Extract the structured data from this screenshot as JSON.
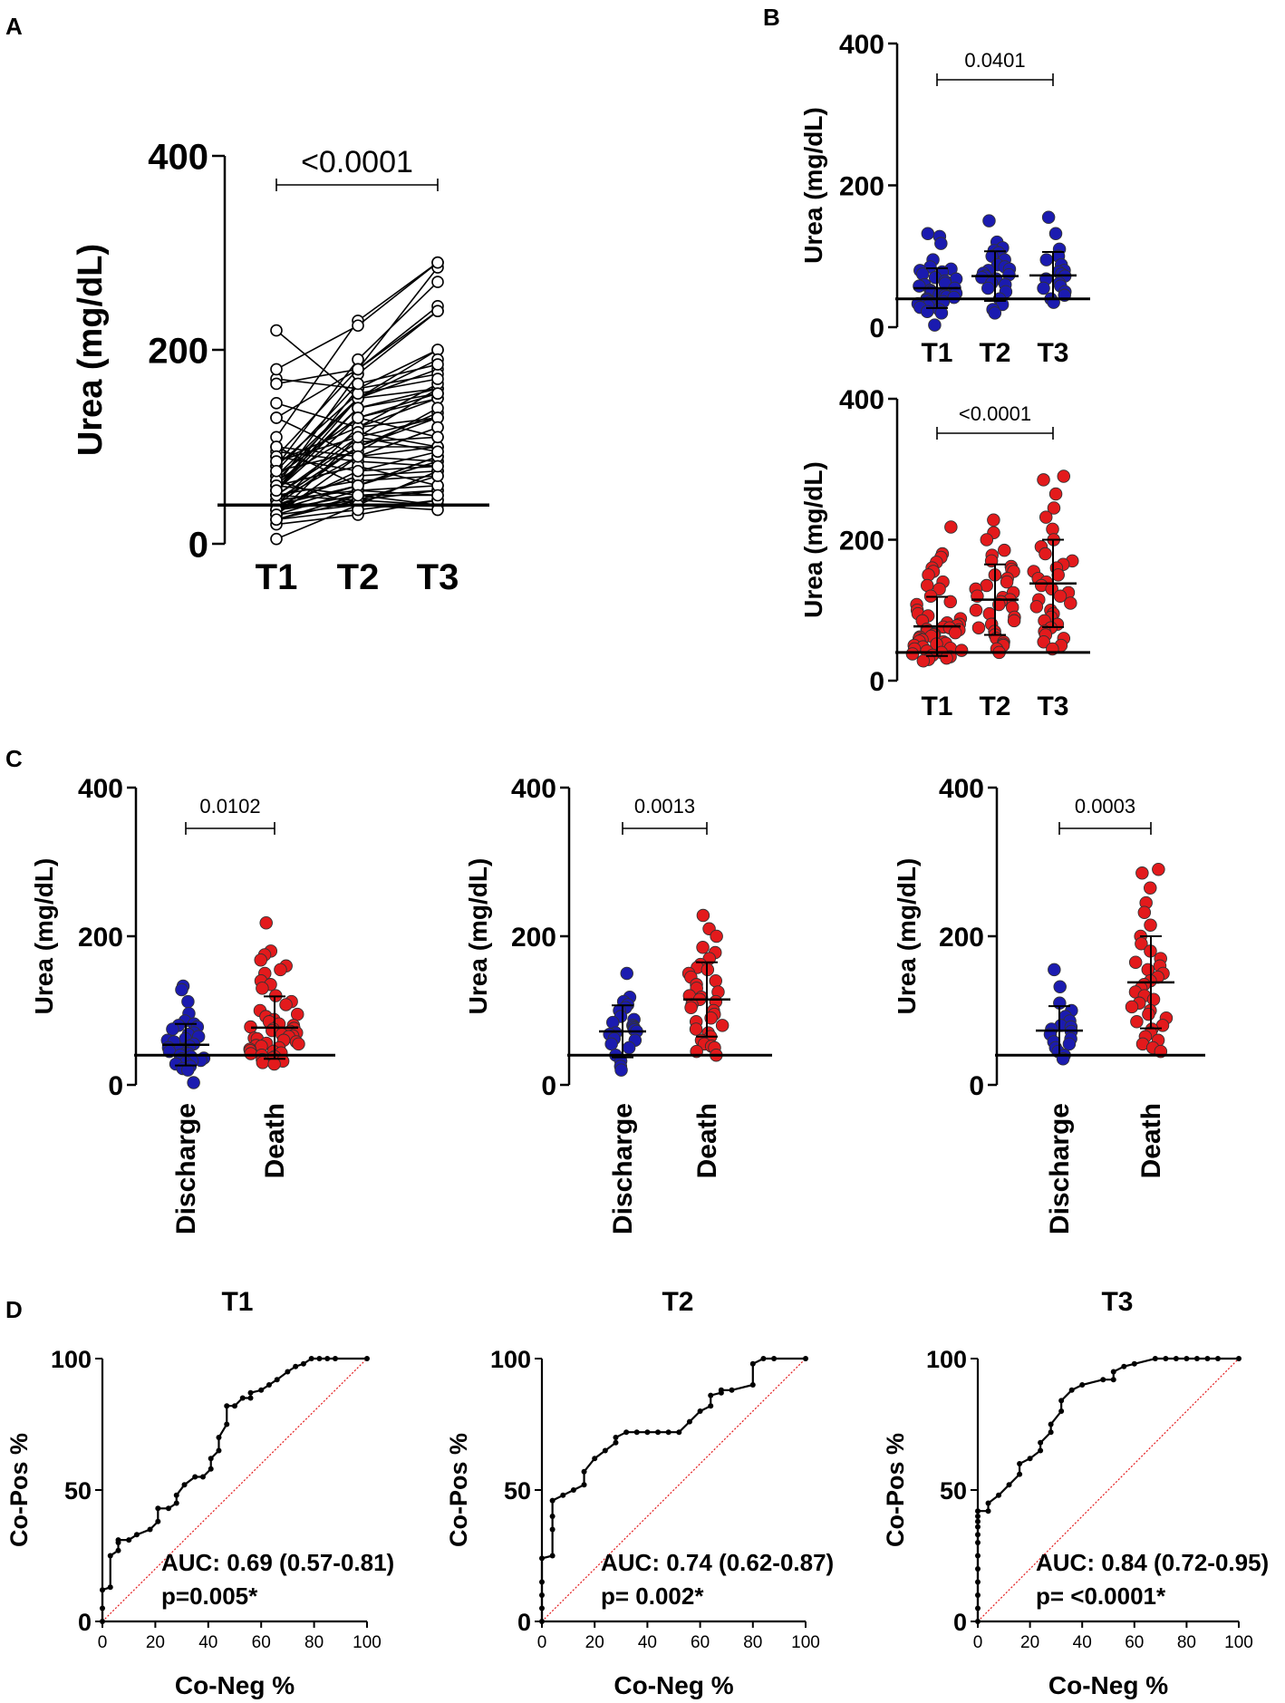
{
  "panel_labels": {
    "a": "A",
    "b": "B",
    "c": "C",
    "d": "D"
  },
  "colors": {
    "discharge": "#1b1bb0",
    "death": "#e31a1c",
    "reference": "#e31a1c",
    "ink": "#000000"
  },
  "chart_data": [
    {
      "id": "A",
      "type": "line",
      "title": "",
      "ylabel": "Urea (mg/dL)",
      "xlabel": "",
      "ylim": [
        0,
        400
      ],
      "yticks": [
        0,
        200,
        400
      ],
      "categories": [
        "T1",
        "T2",
        "T3"
      ],
      "reference_line": 40,
      "pvalue": "<0.0001",
      "pvalue_span": [
        0,
        2
      ],
      "paired_series": [
        [
          5,
          40,
          75
        ],
        [
          30,
          90,
          120
        ],
        [
          35,
          60,
          85
        ],
        [
          40,
          120,
          150
        ],
        [
          55,
          160,
          200
        ],
        [
          110,
          230,
          290
        ],
        [
          70,
          150,
          200
        ],
        [
          60,
          175,
          240
        ],
        [
          45,
          100,
          135
        ],
        [
          25,
          45,
          55
        ],
        [
          80,
          190,
          270
        ],
        [
          65,
          150,
          180
        ],
        [
          90,
          180,
          245
        ],
        [
          50,
          110,
          160
        ],
        [
          35,
          75,
          95
        ],
        [
          45,
          55,
          50
        ],
        [
          50,
          65,
          70
        ],
        [
          20,
          30,
          45
        ],
        [
          55,
          150,
          190
        ],
        [
          30,
          110,
          130
        ],
        [
          60,
          140,
          160
        ],
        [
          70,
          130,
          150
        ],
        [
          40,
          70,
          75
        ],
        [
          45,
          90,
          85
        ],
        [
          50,
          105,
          110
        ],
        [
          30,
          55,
          60
        ],
        [
          40,
          100,
          100
        ],
        [
          35,
          45,
          40
        ],
        [
          25,
          50,
          55
        ],
        [
          130,
          180,
          285
        ],
        [
          170,
          160,
          175
        ],
        [
          165,
          180,
          240
        ],
        [
          180,
          225,
          290
        ],
        [
          220,
          150,
          160
        ],
        [
          145,
          120,
          130
        ],
        [
          130,
          90,
          100
        ],
        [
          100,
          60,
          90
        ],
        [
          95,
          85,
          80
        ],
        [
          65,
          40,
          75
        ],
        [
          75,
          95,
          140
        ],
        [
          85,
          120,
          165
        ],
        [
          60,
          80,
          60
        ],
        [
          55,
          140,
          155
        ],
        [
          45,
          100,
          130
        ],
        [
          40,
          60,
          90
        ],
        [
          35,
          50,
          40
        ],
        [
          70,
          130,
          155
        ],
        [
          65,
          115,
          100
        ],
        [
          80,
          155,
          170
        ],
        [
          50,
          45,
          70
        ],
        [
          30,
          40,
          35
        ],
        [
          25,
          35,
          45
        ],
        [
          100,
          90,
          120
        ],
        [
          90,
          75,
          80
        ],
        [
          85,
          110,
          95
        ],
        [
          60,
          50,
          50
        ],
        [
          55,
          130,
          110
        ],
        [
          75,
          165,
          185
        ]
      ]
    },
    {
      "id": "B-top",
      "type": "scatter",
      "ylabel": "Urea (mg/dL)",
      "ylim": [
        0,
        400
      ],
      "yticks": [
        0,
        200,
        400
      ],
      "categories": [
        "T1",
        "T2",
        "T3"
      ],
      "reference_line": 40,
      "pvalue": "0.0401",
      "pvalue_span": [
        0,
        2
      ],
      "color": "discharge",
      "series": [
        {
          "name": "T1",
          "mean": 55,
          "sd": 28,
          "values": [
            128,
            132,
            118,
            95,
            85,
            82,
            80,
            78,
            75,
            70,
            68,
            65,
            62,
            60,
            58,
            55,
            52,
            50,
            48,
            46,
            45,
            43,
            42,
            40,
            38,
            36,
            35,
            33,
            32,
            30,
            28,
            25,
            22,
            20,
            3
          ]
        },
        {
          "name": "T2",
          "mean": 72,
          "sd": 35,
          "values": [
            150,
            120,
            112,
            108,
            105,
            100,
            95,
            88,
            85,
            82,
            80,
            76,
            74,
            72,
            70,
            68,
            62,
            60,
            55,
            50,
            40,
            32,
            25,
            20
          ]
        },
        {
          "name": "T3",
          "mean": 73,
          "sd": 33,
          "values": [
            155,
            132,
            110,
            100,
            95,
            88,
            80,
            78,
            75,
            72,
            68,
            62,
            58,
            55,
            50,
            45,
            40,
            35
          ]
        }
      ]
    },
    {
      "id": "B-bottom",
      "type": "scatter",
      "ylabel": "Urea (mg/dL)",
      "ylim": [
        0,
        400
      ],
      "yticks": [
        0,
        200,
        400
      ],
      "categories": [
        "T1",
        "T2",
        "T3"
      ],
      "reference_line": 40,
      "pvalue": "<0.0001",
      "pvalue_span": [
        0,
        2
      ],
      "color": "death",
      "series": [
        {
          "name": "T1",
          "mean": 77,
          "sd": 42,
          "values": [
            218,
            180,
            175,
            168,
            160,
            155,
            150,
            140,
            135,
            130,
            120,
            112,
            108,
            100,
            95,
            92,
            88,
            85,
            82,
            80,
            78,
            76,
            75,
            73,
            72,
            70,
            68,
            66,
            65,
            63,
            62,
            60,
            58,
            56,
            55,
            53,
            52,
            50,
            48,
            46,
            45,
            43,
            42,
            40,
            38,
            36,
            34,
            32,
            30,
            28
          ]
        },
        {
          "name": "T2",
          "mean": 115,
          "sd": 50,
          "values": [
            228,
            210,
            200,
            185,
            178,
            170,
            162,
            158,
            155,
            150,
            145,
            140,
            135,
            130,
            125,
            120,
            118,
            115,
            112,
            108,
            104,
            100,
            95,
            90,
            85,
            80,
            75,
            70,
            65,
            60,
            55,
            52,
            50,
            45,
            40
          ]
        },
        {
          "name": "T3",
          "mean": 138,
          "sd": 62,
          "values": [
            290,
            285,
            265,
            245,
            232,
            215,
            200,
            190,
            180,
            170,
            165,
            160,
            155,
            150,
            145,
            140,
            135,
            130,
            125,
            120,
            115,
            110,
            105,
            100,
            95,
            90,
            85,
            80,
            75,
            70,
            65,
            60,
            55,
            50,
            45
          ]
        }
      ]
    },
    {
      "id": "C-T1",
      "type": "scatter",
      "ylabel": "Urea (mg/dL)",
      "ylim": [
        0,
        400
      ],
      "yticks": [
        0,
        200,
        400
      ],
      "categories": [
        "Discharge",
        "Death"
      ],
      "reference_line": 40,
      "pvalue": "0.0102",
      "pvalue_span": [
        0,
        1
      ],
      "series": [
        {
          "name": "Discharge",
          "color": "discharge",
          "mean": 54,
          "sd": 28,
          "values": [
            133,
            128,
            112,
            96,
            86,
            82,
            80,
            78,
            75,
            70,
            68,
            65,
            62,
            60,
            58,
            55,
            52,
            50,
            48,
            46,
            45,
            43,
            42,
            40,
            38,
            36,
            35,
            33,
            32,
            30,
            28,
            25,
            22,
            20,
            3
          ]
        },
        {
          "name": "Death",
          "color": "death",
          "mean": 77,
          "sd": 42,
          "values": [
            218,
            180,
            175,
            168,
            160,
            155,
            150,
            140,
            135,
            130,
            120,
            112,
            108,
            100,
            95,
            92,
            88,
            85,
            82,
            80,
            78,
            76,
            75,
            73,
            72,
            70,
            68,
            66,
            65,
            63,
            62,
            60,
            58,
            56,
            55,
            53,
            52,
            50,
            48,
            46,
            45,
            43,
            42,
            40,
            38,
            36,
            34,
            32,
            30,
            28
          ]
        }
      ]
    },
    {
      "id": "C-T2",
      "type": "scatter",
      "ylabel": "Urea (mg/dL)",
      "ylim": [
        0,
        400
      ],
      "yticks": [
        0,
        200,
        400
      ],
      "categories": [
        "Discharge",
        "Death"
      ],
      "reference_line": 40,
      "pvalue": "0.0013",
      "pvalue_span": [
        0,
        1
      ],
      "series": [
        {
          "name": "Discharge",
          "color": "discharge",
          "mean": 72,
          "sd": 35,
          "values": [
            150,
            118,
            112,
            108,
            104,
            100,
            92,
            88,
            84,
            80,
            78,
            76,
            74,
            72,
            70,
            68,
            62,
            60,
            55,
            50,
            40,
            32,
            25,
            20
          ]
        },
        {
          "name": "Death",
          "color": "death",
          "mean": 115,
          "sd": 50,
          "values": [
            228,
            210,
            200,
            185,
            178,
            170,
            162,
            158,
            155,
            150,
            145,
            140,
            135,
            130,
            125,
            120,
            118,
            115,
            112,
            108,
            104,
            100,
            95,
            90,
            85,
            80,
            75,
            70,
            65,
            60,
            55,
            52,
            50,
            45,
            40
          ]
        }
      ]
    },
    {
      "id": "C-T3",
      "type": "scatter",
      "ylabel": "Urea (mg/dL)",
      "ylim": [
        0,
        400
      ],
      "yticks": [
        0,
        200,
        400
      ],
      "categories": [
        "Discharge",
        "Death"
      ],
      "reference_line": 40,
      "pvalue": "0.0003",
      "pvalue_span": [
        0,
        1
      ],
      "series": [
        {
          "name": "Discharge",
          "color": "discharge",
          "mean": 73,
          "sd": 33,
          "values": [
            155,
            132,
            110,
            100,
            92,
            86,
            80,
            78,
            75,
            72,
            68,
            62,
            58,
            55,
            50,
            45,
            40,
            35
          ]
        },
        {
          "name": "Death",
          "color": "death",
          "mean": 138,
          "sd": 62,
          "values": [
            290,
            285,
            265,
            245,
            232,
            215,
            200,
            190,
            180,
            170,
            165,
            160,
            155,
            150,
            145,
            140,
            135,
            130,
            125,
            120,
            115,
            110,
            105,
            100,
            95,
            90,
            85,
            80,
            75,
            70,
            65,
            60,
            55,
            50,
            45
          ]
        }
      ]
    },
    {
      "id": "D-T1",
      "type": "line",
      "title": "T1",
      "xlabel": "Co-Neg %",
      "ylabel": "Co-Pos %",
      "xlim": [
        0,
        100
      ],
      "ylim": [
        0,
        100
      ],
      "xticks": [
        0,
        20,
        40,
        60,
        80,
        100
      ],
      "yticks": [
        0,
        50,
        100
      ],
      "auc_text": "AUC: 0.69 (0.57-0.81)",
      "p_text": "p=0.005*",
      "x": [
        0,
        0,
        0,
        3,
        3,
        6,
        6,
        6,
        10,
        13,
        18,
        21,
        21,
        25,
        28,
        28,
        31,
        35,
        38,
        41,
        41,
        44,
        44,
        47,
        47,
        50,
        53,
        56,
        56,
        60,
        63,
        66,
        70,
        73,
        76,
        79,
        82,
        85,
        88,
        100
      ],
      "y": [
        0,
        5,
        12,
        13,
        25,
        27,
        30,
        31,
        31,
        33,
        35,
        38,
        43,
        43,
        45,
        48,
        52,
        55,
        55,
        58,
        62,
        65,
        70,
        75,
        82,
        82,
        85,
        85,
        87,
        88,
        90,
        92,
        95,
        97,
        98,
        100,
        100,
        100,
        100,
        100
      ]
    },
    {
      "id": "D-T2",
      "type": "line",
      "title": "T2",
      "xlabel": "Co-Neg %",
      "ylabel": "Co-Pos %",
      "xlim": [
        0,
        100
      ],
      "ylim": [
        0,
        100
      ],
      "xticks": [
        0,
        20,
        40,
        60,
        80,
        100
      ],
      "yticks": [
        0,
        50,
        100
      ],
      "auc_text": "AUC: 0.74 (0.62-0.87)",
      "p_text": "p= 0.002*",
      "x": [
        0,
        0,
        0,
        0,
        0,
        4,
        4,
        4,
        4,
        8,
        12,
        16,
        16,
        20,
        24,
        28,
        28,
        32,
        36,
        40,
        44,
        48,
        52,
        56,
        60,
        64,
        64,
        68,
        68,
        72,
        80,
        80,
        84,
        88,
        100
      ],
      "y": [
        0,
        5,
        10,
        15,
        24,
        25,
        35,
        40,
        46,
        48,
        50,
        52,
        57,
        62,
        65,
        68,
        70,
        72,
        72,
        72,
        72,
        72,
        72,
        76,
        80,
        82,
        86,
        87,
        88,
        88,
        90,
        98,
        100,
        100,
        100
      ]
    },
    {
      "id": "D-T3",
      "type": "line",
      "title": "T3",
      "xlabel": "Co-Neg %",
      "ylabel": "Co-Pos %",
      "xlim": [
        0,
        100
      ],
      "ylim": [
        0,
        100
      ],
      "xticks": [
        0,
        20,
        40,
        60,
        80,
        100
      ],
      "yticks": [
        0,
        50,
        100
      ],
      "auc_text": "AUC: 0.84 (0.72-0.95)",
      "p_text": "p= <0.0001*",
      "x": [
        0,
        0,
        0,
        0,
        0,
        0,
        0,
        0,
        0,
        0,
        0,
        0,
        4,
        4,
        8,
        12,
        16,
        16,
        20,
        24,
        24,
        28,
        28,
        32,
        32,
        36,
        40,
        48,
        52,
        52,
        56,
        60,
        68,
        72,
        76,
        80,
        84,
        88,
        92,
        100
      ],
      "y": [
        0,
        5,
        10,
        15,
        20,
        25,
        30,
        33,
        36,
        38,
        40,
        42,
        42,
        45,
        48,
        52,
        56,
        60,
        62,
        65,
        68,
        72,
        75,
        80,
        84,
        88,
        90,
        92,
        92,
        95,
        97,
        98,
        100,
        100,
        100,
        100,
        100,
        100,
        100,
        100
      ]
    }
  ]
}
